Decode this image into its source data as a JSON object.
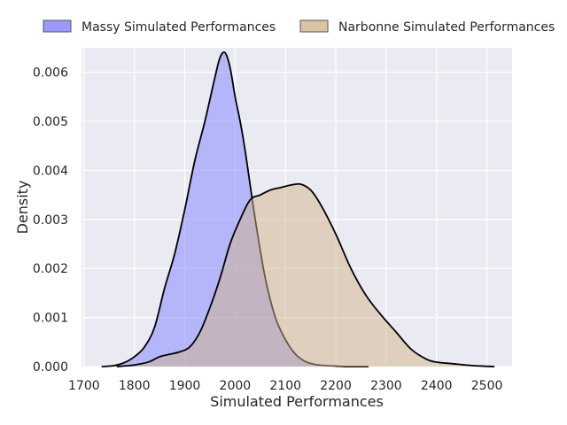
{
  "chart_data": {
    "type": "area",
    "title": "",
    "xlabel": "Simulated Performances",
    "ylabel": "Density",
    "xlim": [
      1695,
      2550
    ],
    "ylim": [
      0,
      0.0065
    ],
    "xticks": [
      1700,
      1800,
      1900,
      2000,
      2100,
      2200,
      2300,
      2400,
      2500
    ],
    "yticks": [
      0,
      0.001,
      0.002,
      0.003,
      0.004,
      0.005,
      0.006
    ],
    "ytick_labels": [
      "0.000",
      "0.001",
      "0.002",
      "0.003",
      "0.004",
      "0.005",
      "0.006"
    ],
    "grid": true,
    "legend_position": "top",
    "colors": {
      "background": "#EAEAF2",
      "grid": "#FFFFFF",
      "outline": "#000000"
    },
    "series": [
      {
        "name": "Massy Simulated Performances",
        "color": "#8080FF",
        "fill_color": "#B1B1F7",
        "x": [
          1735,
          1760,
          1780,
          1800,
          1820,
          1840,
          1860,
          1880,
          1900,
          1920,
          1940,
          1960,
          1970,
          1980,
          1990,
          2000,
          2010,
          2020,
          2040,
          2060,
          2080,
          2100,
          2120,
          2140,
          2160,
          2180,
          2200,
          2220,
          2240,
          2265
        ],
        "y": [
          0.0,
          2e-05,
          8e-05,
          0.0002,
          0.0004,
          0.0008,
          0.0016,
          0.0023,
          0.0032,
          0.0042,
          0.005,
          0.0059,
          0.0063,
          0.0064,
          0.0061,
          0.0055,
          0.005,
          0.0044,
          0.003,
          0.0018,
          0.001,
          0.00055,
          0.00025,
          0.0001,
          4e-05,
          2e-05,
          1e-05,
          0.0,
          0.0,
          0.0
        ]
      },
      {
        "name": "Narbonne Simulated Performances",
        "color": "#D2B48C",
        "fill_color": "#DDCBBF",
        "x": [
          1765,
          1790,
          1810,
          1830,
          1850,
          1870,
          1890,
          1910,
          1930,
          1950,
          1970,
          1990,
          2010,
          2030,
          2050,
          2070,
          2090,
          2110,
          2130,
          2150,
          2170,
          2200,
          2230,
          2260,
          2290,
          2320,
          2350,
          2380,
          2400,
          2430,
          2460,
          2490,
          2515
        ],
        "y": [
          0.0,
          2e-05,
          5e-05,
          0.0001,
          0.0002,
          0.00025,
          0.0003,
          0.0004,
          0.0007,
          0.0012,
          0.0018,
          0.0025,
          0.003,
          0.0034,
          0.0035,
          0.0036,
          0.00365,
          0.0037,
          0.00372,
          0.0036,
          0.0033,
          0.0027,
          0.002,
          0.00145,
          0.00105,
          0.0007,
          0.00035,
          0.00015,
          9e-05,
          6e-05,
          3e-05,
          1e-05,
          0.0
        ]
      }
    ]
  }
}
